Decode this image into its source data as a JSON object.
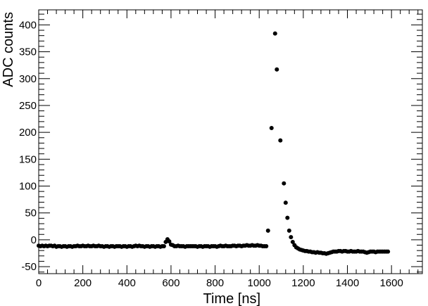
{
  "chart_data": {
    "type": "scatter",
    "title": "",
    "xlabel": "Time [ns]",
    "ylabel": "ADC counts",
    "xlim": [
      0,
      1740
    ],
    "ylim": [
      -63,
      428
    ],
    "grid": false,
    "legend": "none",
    "x_ticks": [
      0,
      200,
      400,
      600,
      800,
      1000,
      1200,
      1400,
      1600
    ],
    "y_ticks": [
      -50,
      0,
      50,
      100,
      150,
      200,
      250,
      300,
      350,
      400
    ],
    "marker_color": "#000000",
    "series": [
      {
        "points": [
          [
            0,
            -11
          ],
          [
            8,
            -12
          ],
          [
            16,
            -11
          ],
          [
            24,
            -12
          ],
          [
            32,
            -11
          ],
          [
            40,
            -12
          ],
          [
            48,
            -11
          ],
          [
            56,
            -11
          ],
          [
            64,
            -12
          ],
          [
            72,
            -11
          ],
          [
            80,
            -13
          ],
          [
            88,
            -12
          ],
          [
            96,
            -12
          ],
          [
            104,
            -13
          ],
          [
            112,
            -12
          ],
          [
            120,
            -12
          ],
          [
            128,
            -13
          ],
          [
            136,
            -12
          ],
          [
            144,
            -12
          ],
          [
            152,
            -13
          ],
          [
            160,
            -12
          ],
          [
            168,
            -12
          ],
          [
            176,
            -11
          ],
          [
            184,
            -12
          ],
          [
            192,
            -12
          ],
          [
            200,
            -11
          ],
          [
            208,
            -12
          ],
          [
            216,
            -12
          ],
          [
            224,
            -11
          ],
          [
            232,
            -12
          ],
          [
            240,
            -12
          ],
          [
            248,
            -11
          ],
          [
            256,
            -12
          ],
          [
            264,
            -12
          ],
          [
            272,
            -11
          ],
          [
            280,
            -12
          ],
          [
            288,
            -12
          ],
          [
            296,
            -13
          ],
          [
            304,
            -12
          ],
          [
            312,
            -12
          ],
          [
            320,
            -13
          ],
          [
            328,
            -12
          ],
          [
            336,
            -12
          ],
          [
            344,
            -13
          ],
          [
            352,
            -12
          ],
          [
            360,
            -12
          ],
          [
            368,
            -12
          ],
          [
            376,
            -13
          ],
          [
            384,
            -12
          ],
          [
            392,
            -12
          ],
          [
            400,
            -13
          ],
          [
            408,
            -12
          ],
          [
            416,
            -12
          ],
          [
            424,
            -13
          ],
          [
            432,
            -12
          ],
          [
            440,
            -11
          ],
          [
            448,
            -12
          ],
          [
            456,
            -11
          ],
          [
            464,
            -12
          ],
          [
            472,
            -12
          ],
          [
            480,
            -13
          ],
          [
            488,
            -12
          ],
          [
            496,
            -12
          ],
          [
            504,
            -13
          ],
          [
            512,
            -12
          ],
          [
            520,
            -12
          ],
          [
            528,
            -13
          ],
          [
            536,
            -12
          ],
          [
            544,
            -12
          ],
          [
            552,
            -13
          ],
          [
            560,
            -12
          ],
          [
            568,
            -12
          ],
          [
            576,
            -4
          ],
          [
            584,
            1
          ],
          [
            592,
            -3
          ],
          [
            600,
            -9
          ],
          [
            608,
            -10
          ],
          [
            616,
            -12
          ],
          [
            624,
            -12
          ],
          [
            632,
            -11
          ],
          [
            640,
            -12
          ],
          [
            648,
            -12
          ],
          [
            656,
            -12
          ],
          [
            664,
            -13
          ],
          [
            672,
            -12
          ],
          [
            680,
            -12
          ],
          [
            688,
            -12
          ],
          [
            696,
            -12
          ],
          [
            704,
            -12
          ],
          [
            712,
            -12
          ],
          [
            720,
            -13
          ],
          [
            728,
            -12
          ],
          [
            736,
            -12
          ],
          [
            744,
            -13
          ],
          [
            752,
            -12
          ],
          [
            760,
            -12
          ],
          [
            768,
            -12
          ],
          [
            776,
            -13
          ],
          [
            784,
            -12
          ],
          [
            792,
            -12
          ],
          [
            800,
            -12
          ],
          [
            808,
            -13
          ],
          [
            816,
            -12
          ],
          [
            824,
            -11
          ],
          [
            832,
            -12
          ],
          [
            840,
            -12
          ],
          [
            848,
            -11
          ],
          [
            856,
            -12
          ],
          [
            864,
            -12
          ],
          [
            872,
            -12
          ],
          [
            880,
            -11
          ],
          [
            888,
            -11
          ],
          [
            896,
            -12
          ],
          [
            904,
            -11
          ],
          [
            912,
            -11
          ],
          [
            920,
            -12
          ],
          [
            928,
            -11
          ],
          [
            936,
            -11
          ],
          [
            944,
            -10
          ],
          [
            952,
            -11
          ],
          [
            960,
            -11
          ],
          [
            968,
            -10
          ],
          [
            976,
            -11
          ],
          [
            984,
            -11
          ],
          [
            992,
            -10
          ],
          [
            1000,
            -11
          ],
          [
            1008,
            -11
          ],
          [
            1016,
            -12
          ],
          [
            1024,
            -12
          ],
          [
            1032,
            -12
          ],
          [
            1040,
            17
          ],
          [
            1056,
            208
          ],
          [
            1072,
            384
          ],
          [
            1080,
            317
          ],
          [
            1096,
            185
          ],
          [
            1112,
            105
          ],
          [
            1120,
            69
          ],
          [
            1128,
            41
          ],
          [
            1136,
            17
          ],
          [
            1144,
            5
          ],
          [
            1152,
            -4
          ],
          [
            1160,
            -10
          ],
          [
            1168,
            -14
          ],
          [
            1176,
            -16
          ],
          [
            1184,
            -18
          ],
          [
            1192,
            -19
          ],
          [
            1200,
            -20
          ],
          [
            1208,
            -21
          ],
          [
            1216,
            -21
          ],
          [
            1224,
            -22
          ],
          [
            1232,
            -22
          ],
          [
            1240,
            -23
          ],
          [
            1248,
            -23
          ],
          [
            1256,
            -24
          ],
          [
            1264,
            -23
          ],
          [
            1272,
            -24
          ],
          [
            1280,
            -24
          ],
          [
            1288,
            -25
          ],
          [
            1296,
            -25
          ],
          [
            1304,
            -26
          ],
          [
            1312,
            -25
          ],
          [
            1320,
            -24
          ],
          [
            1328,
            -23
          ],
          [
            1336,
            -22
          ],
          [
            1344,
            -22
          ],
          [
            1352,
            -22
          ],
          [
            1360,
            -21
          ],
          [
            1368,
            -21
          ],
          [
            1376,
            -22
          ],
          [
            1384,
            -21
          ],
          [
            1392,
            -21
          ],
          [
            1400,
            -22
          ],
          [
            1408,
            -22
          ],
          [
            1416,
            -21
          ],
          [
            1424,
            -22
          ],
          [
            1432,
            -22
          ],
          [
            1440,
            -22
          ],
          [
            1448,
            -21
          ],
          [
            1456,
            -22
          ],
          [
            1464,
            -22
          ],
          [
            1472,
            -22
          ],
          [
            1480,
            -23
          ],
          [
            1488,
            -24
          ],
          [
            1496,
            -23
          ],
          [
            1504,
            -22
          ],
          [
            1512,
            -22
          ],
          [
            1520,
            -22
          ],
          [
            1528,
            -23
          ],
          [
            1536,
            -22
          ],
          [
            1544,
            -22
          ],
          [
            1552,
            -22
          ],
          [
            1560,
            -22
          ],
          [
            1568,
            -22
          ],
          [
            1576,
            -22
          ],
          [
            1584,
            -22
          ]
        ]
      }
    ]
  }
}
